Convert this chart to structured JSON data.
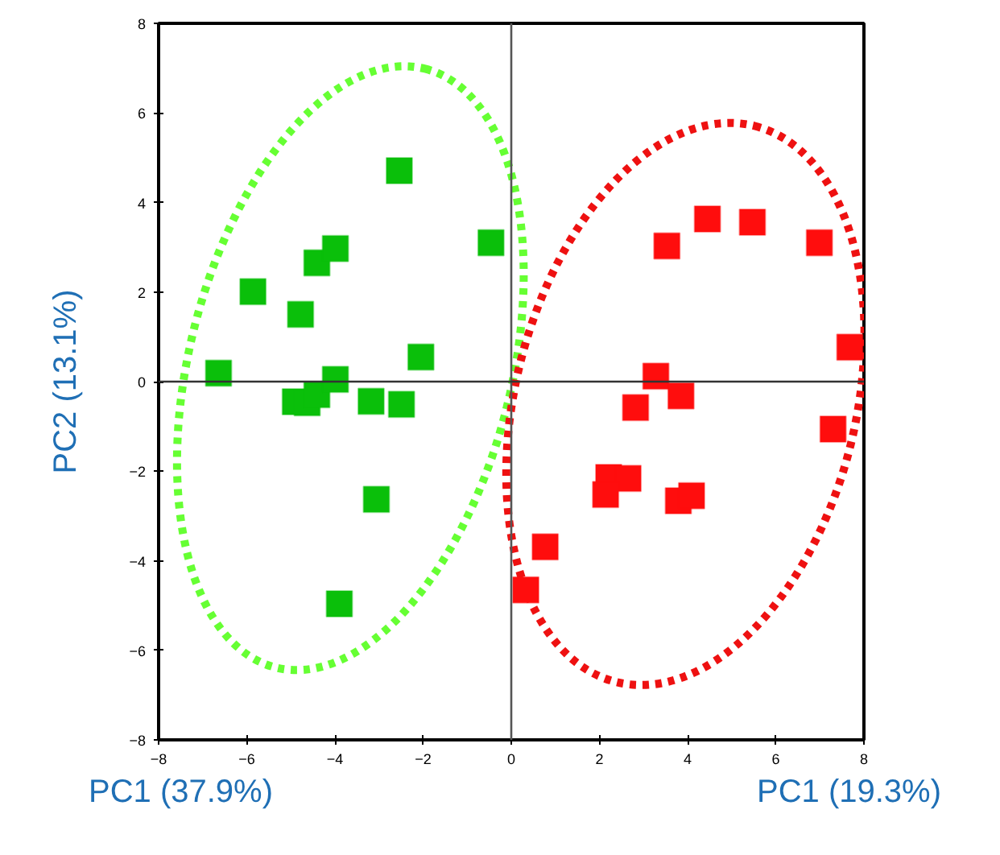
{
  "chart_data": {
    "type": "scatter",
    "xlabel": "PC1 (37.9%)",
    "ylabel": "PC2 (13.1%)",
    "annotations": [
      "PC1 (19.3%)"
    ],
    "xlim": [
      -8,
      8
    ],
    "ylim": [
      -8,
      8
    ],
    "xticks": [
      -8,
      -6,
      -4,
      -2,
      0,
      2,
      4,
      6,
      8
    ],
    "yticks": [
      -8,
      -6,
      -4,
      -2,
      0,
      2,
      4,
      6,
      8
    ],
    "grid": false,
    "marker": "square",
    "ref_lines": [
      {
        "axis": "x",
        "value": 0,
        "color": "#555555"
      },
      {
        "axis": "y",
        "value": 0,
        "color": "#333333"
      }
    ],
    "series": [
      {
        "color": "#0abf0a",
        "x": [
          -6.64,
          -5.86,
          -4.78,
          -4.41,
          -3.99,
          -2.54,
          -0.46,
          -2.05,
          -4.9,
          -4.63,
          -4.41,
          -3.99,
          -3.18,
          -2.49,
          -3.06,
          -3.9
        ],
        "values": [
          0.19,
          2.01,
          1.5,
          2.65,
          2.97,
          4.71,
          3.1,
          0.55,
          -0.45,
          -0.47,
          -0.29,
          0.05,
          -0.44,
          -0.51,
          -2.63,
          -4.96
        ]
      },
      {
        "color": "#ff0d0d",
        "x": [
          3.53,
          4.45,
          5.47,
          6.99,
          7.68,
          3.28,
          3.85,
          2.82,
          7.3,
          2.21,
          2.65,
          2.14,
          3.79,
          4.09,
          0.77,
          0.33
        ],
        "values": [
          3.03,
          3.63,
          3.56,
          3.1,
          0.77,
          0.12,
          -0.32,
          -0.58,
          -1.06,
          -2.14,
          -2.16,
          -2.52,
          -2.66,
          -2.55,
          -3.69,
          -4.65
        ]
      }
    ]
  }
}
